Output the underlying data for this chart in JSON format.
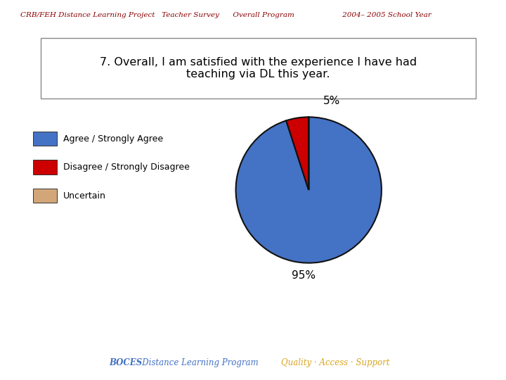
{
  "header_parts": [
    {
      "text": "CRB/FEH Distance Learning Project",
      "color": "#8B0000"
    },
    {
      "text": "   Teacher Survey",
      "color": "#8B0000"
    },
    {
      "text": "      Overall Program",
      "color": "#8B0000"
    },
    {
      "text": "                        2004– 2005 School Year",
      "color": "#8B0000"
    }
  ],
  "header_color": "#8B0000",
  "title_text": "7. Overall, I am satisfied with the experience I have had\nteaching via DL this year.",
  "title_fontsize": 11.5,
  "pie_values": [
    95,
    5,
    0.0001
  ],
  "pie_colors": [
    "#4472C4",
    "#CC0000",
    "#D2A679"
  ],
  "legend_labels": [
    "Agree / Strongly Agree",
    "Disagree / Strongly Disagree",
    "Uncertain"
  ],
  "legend_colors": [
    "#4472C4",
    "#CC0000",
    "#D2A679"
  ],
  "label_95": "95%",
  "label_5": "5%",
  "footer_boces": "BOCES",
  "footer_dlp": "   Distance Learning Program",
  "footer_quality": "    Quality · Access · Support",
  "footer_boces_color": "#4472C4",
  "footer_dlp_color": "#4472C4",
  "footer_quality_color": "#DAA520",
  "bg_color": "#FFFFFF"
}
